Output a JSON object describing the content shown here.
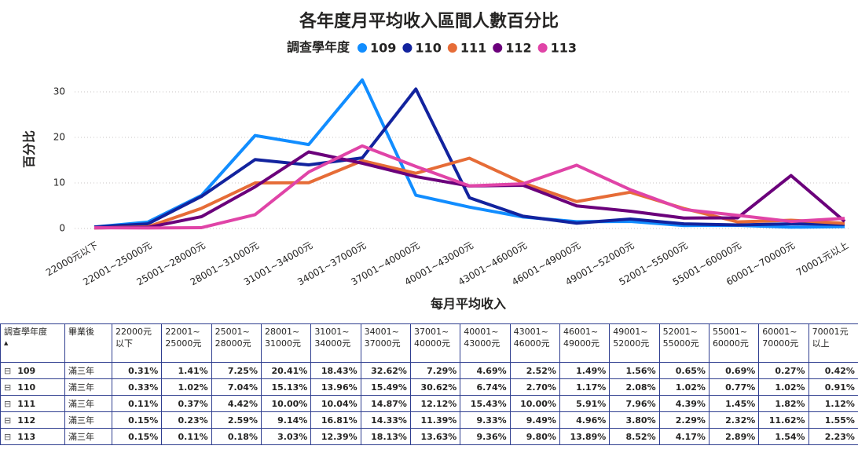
{
  "chart_data": {
    "type": "line",
    "title": "各年度月平均收入區間人數百分比",
    "legend_title": "調查學年度",
    "x_label": "每月平均收入",
    "y_label": "百分比",
    "categories": [
      "22000元以下",
      "22001~25000元",
      "25001~28000元",
      "28001~31000元",
      "31001~34000元",
      "34001~37000元",
      "37001~40000元",
      "40001~43000元",
      "43001~46000元",
      "46001~49000元",
      "49001~52000元",
      "52001~55000元",
      "55001~60000元",
      "60001~70000元",
      "70001元以上"
    ],
    "series": [
      {
        "name": "109",
        "color": "#118DFF",
        "values": [
          0.31,
          1.41,
          7.25,
          20.41,
          18.43,
          32.62,
          7.29,
          4.69,
          2.52,
          1.49,
          1.56,
          0.65,
          0.69,
          0.27,
          0.42
        ]
      },
      {
        "name": "110",
        "color": "#12239E",
        "values": [
          0.33,
          1.02,
          7.04,
          15.13,
          13.96,
          15.49,
          30.62,
          6.74,
          2.7,
          1.17,
          2.08,
          1.02,
          0.77,
          1.02,
          0.91
        ]
      },
      {
        "name": "111",
        "color": "#E66C37",
        "values": [
          0.11,
          0.37,
          4.42,
          10.0,
          10.04,
          14.87,
          12.12,
          15.43,
          10.0,
          5.91,
          7.96,
          4.39,
          1.45,
          1.82,
          1.12
        ]
      },
      {
        "name": "112",
        "color": "#6B007B",
        "values": [
          0.15,
          0.23,
          2.59,
          9.14,
          16.81,
          14.33,
          11.39,
          9.33,
          9.49,
          4.96,
          3.8,
          2.29,
          2.32,
          11.62,
          1.55
        ]
      },
      {
        "name": "113",
        "color": "#E044A7",
        "values": [
          0.15,
          0.11,
          0.18,
          3.03,
          12.39,
          18.13,
          13.63,
          9.36,
          9.8,
          13.89,
          8.52,
          4.17,
          2.89,
          1.54,
          2.23
        ]
      }
    ],
    "ylim": [
      -1.5,
      33.5
    ],
    "yticks": [
      0,
      10,
      20,
      30
    ],
    "grid": true,
    "legend": "top"
  },
  "table": {
    "header": [
      "調查學年度",
      "畢業後",
      "22000元\n以下",
      "22001~\n25000元",
      "25001~\n28000元",
      "28001~\n31000元",
      "31001~\n34000元",
      "34001~\n37000元",
      "37001~\n40000元",
      "40001~\n43000元",
      "43001~\n46000元",
      "46001~\n49000元",
      "49001~\n52000元",
      "52001~\n55000元",
      "55001~\n60000元",
      "60001~\n70000元",
      "70001元\n以上"
    ],
    "rows": [
      [
        "109",
        "滿三年",
        "0.31%",
        "1.41%",
        "7.25%",
        "20.41%",
        "18.43%",
        "32.62%",
        "7.29%",
        "4.69%",
        "2.52%",
        "1.49%",
        "1.56%",
        "0.65%",
        "0.69%",
        "0.27%",
        "0.42%"
      ],
      [
        "110",
        "滿三年",
        "0.33%",
        "1.02%",
        "7.04%",
        "15.13%",
        "13.96%",
        "15.49%",
        "30.62%",
        "6.74%",
        "2.70%",
        "1.17%",
        "2.08%",
        "1.02%",
        "0.77%",
        "1.02%",
        "0.91%"
      ],
      [
        "111",
        "滿三年",
        "0.11%",
        "0.37%",
        "4.42%",
        "10.00%",
        "10.04%",
        "14.87%",
        "12.12%",
        "15.43%",
        "10.00%",
        "5.91%",
        "7.96%",
        "4.39%",
        "1.45%",
        "1.82%",
        "1.12%"
      ],
      [
        "112",
        "滿三年",
        "0.15%",
        "0.23%",
        "2.59%",
        "9.14%",
        "16.81%",
        "14.33%",
        "11.39%",
        "9.33%",
        "9.49%",
        "4.96%",
        "3.80%",
        "2.29%",
        "2.32%",
        "11.62%",
        "1.55%"
      ],
      [
        "113",
        "滿三年",
        "0.15%",
        "0.11%",
        "0.18%",
        "3.03%",
        "12.39%",
        "18.13%",
        "13.63%",
        "9.36%",
        "9.80%",
        "13.89%",
        "8.52%",
        "4.17%",
        "2.89%",
        "1.54%",
        "2.23%"
      ]
    ]
  }
}
